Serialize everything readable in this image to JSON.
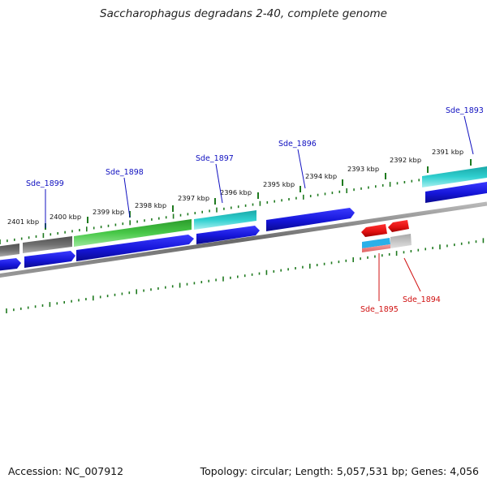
{
  "title": "Saccharophagus degradans 2-40, complete genome",
  "footer": {
    "accession": "Accession: NC_007912",
    "summary": "Topology: circular; Length: 5,057,531 bp; Genes: 4,056"
  },
  "colors": {
    "backbone": "#8a8a8a",
    "tick": "#1f7a1f",
    "label_plus": "#1010c0",
    "label_minus": "#d01010",
    "gene_blue": "#1515d8",
    "gene_green": "#3fbf3f",
    "gene_cyan": "#30c8c8",
    "gene_gray": "#707070",
    "gene_red": "#e81010",
    "gene_pink": "#f08080",
    "gene_lightgray": "#c0c0c0"
  },
  "kbp_labels": [
    "2401 kbp",
    "2400 kbp",
    "2399 kbp",
    "2398 kbp",
    "2397 kbp",
    "2396 kbp",
    "2395 kbp",
    "2394 kbp",
    "2393 kbp",
    "2392 kbp",
    "2391 kbp"
  ],
  "gene_labels": [
    {
      "name": "Sde_1899",
      "strand": "plus"
    },
    {
      "name": "Sde_1898",
      "strand": "plus"
    },
    {
      "name": "Sde_1897",
      "strand": "plus"
    },
    {
      "name": "Sde_1896",
      "strand": "plus"
    },
    {
      "name": "Sde_1893",
      "strand": "plus"
    },
    {
      "name": "Sde_1895",
      "strand": "minus"
    },
    {
      "name": "Sde_1894",
      "strand": "minus"
    }
  ]
}
